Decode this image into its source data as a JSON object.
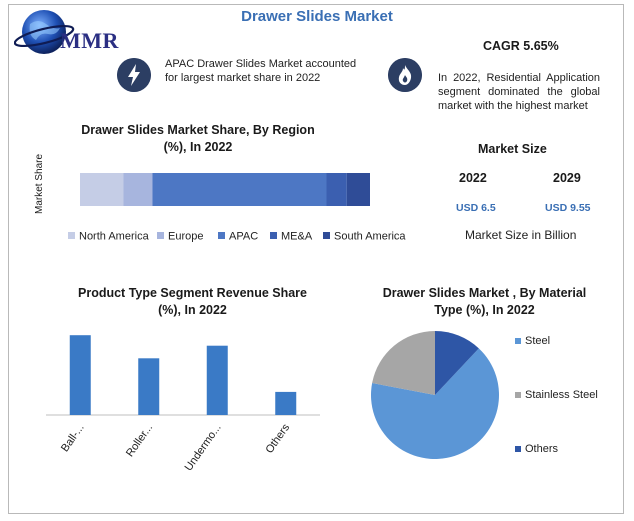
{
  "title": "Drawer Slides Market",
  "logo": {
    "text": "MMR"
  },
  "info_left": {
    "icon": "lightning-icon",
    "text": "APAC Drawer Slides Market accounted for largest market share in 2022"
  },
  "cagr": {
    "title": "CAGR 5.65%",
    "icon": "flame-icon",
    "text": "In 2022, Residential Application segment dominated the global market with the highest market"
  },
  "market_size": {
    "title": "Market Size",
    "year_a": "2022",
    "year_b": "2029",
    "value_a": "USD 6.5",
    "value_b": "USD 9.55",
    "note": "Market Size in Billion"
  },
  "colors": {
    "north_america": "#c5cde6",
    "europe": "#a7b5de",
    "apac": "#4d77c4",
    "mea": "#3b5fb0",
    "south_america": "#2f4c97",
    "bar": "#3a7ac6",
    "steel": "#5b96d6",
    "stainless": "#a6a6a6",
    "others": "#2e56a6"
  },
  "chart_data": [
    {
      "type": "bar",
      "orientation": "horizontal-stacked",
      "title": "Drawer Slides Market Share, By Region (%), In 2022",
      "ylabel": "Market Share",
      "series": [
        {
          "name": "North America",
          "values": [
            15
          ]
        },
        {
          "name": "Europe",
          "values": [
            10
          ]
        },
        {
          "name": "APAC",
          "values": [
            60
          ]
        },
        {
          "name": "ME&A",
          "values": [
            7
          ]
        },
        {
          "name": "South America",
          "values": [
            8
          ]
        }
      ],
      "legend": "bottom"
    },
    {
      "type": "bar",
      "title": "Product Type Segment Revenue Share (%), In 2022",
      "categories": [
        "Ball-...",
        "Roller...",
        "Undermo...",
        "Others"
      ],
      "values": [
        38,
        27,
        33,
        11
      ],
      "ylim": [
        0,
        40
      ]
    },
    {
      "type": "pie",
      "title": "Drawer Slides Market , By Material Type (%), In 2022",
      "categories": [
        "Steel",
        "Stainless Steel",
        "Others"
      ],
      "values": [
        66,
        22,
        12
      ],
      "legend": "right"
    }
  ]
}
